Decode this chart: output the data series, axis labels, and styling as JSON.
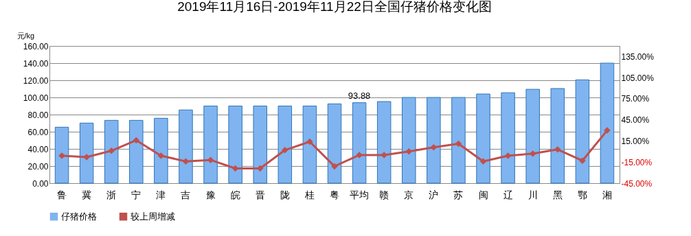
{
  "chart_data": {
    "type": "bar",
    "title": "2019年11月16日-2019年11月22日全国仔猪价格变化图",
    "ylabel": "元/kg",
    "categories": [
      "鲁",
      "冀",
      "浙",
      "宁",
      "津",
      "吉",
      "豫",
      "皖",
      "晋",
      "陇",
      "桂",
      "粤",
      "平均",
      "赣",
      "京",
      "沪",
      "苏",
      "闽",
      "辽",
      "川",
      "黑",
      "鄂",
      "湘"
    ],
    "series": [
      {
        "name": "仔猪价格",
        "color": "#7fb4f0",
        "values": [
          65.3,
          70.1,
          73.3,
          73.3,
          75.7,
          85.4,
          90,
          90,
          90,
          90,
          90,
          92.5,
          93.88,
          95.2,
          100,
          100,
          100,
          104,
          105.5,
          109.5,
          110.4,
          120.5,
          140
        ],
        "value_labels": [
          null,
          null,
          null,
          null,
          null,
          null,
          null,
          null,
          null,
          null,
          null,
          null,
          "93.88",
          null,
          null,
          null,
          null,
          null,
          null,
          null,
          null,
          null,
          null
        ]
      },
      {
        "name": "较上周增减",
        "type": "line",
        "axis": "y2",
        "color": "#c0504d",
        "values": [
          -6,
          -8,
          1,
          16,
          -6,
          -14,
          -12,
          -24,
          -24,
          2,
          14,
          -21,
          -5,
          -5,
          0,
          6,
          11,
          -14,
          -6,
          -3,
          3,
          -13,
          30
        ]
      }
    ],
    "ylim": [
      0,
      160
    ],
    "yticks": [
      {
        "value": 0,
        "label": "0.00"
      },
      {
        "value": 20,
        "label": "20.00"
      },
      {
        "value": 40,
        "label": "40.00"
      },
      {
        "value": 60,
        "label": "60.00"
      },
      {
        "value": 80,
        "label": "80.00"
      },
      {
        "value": 100,
        "label": "100.00"
      },
      {
        "value": 120,
        "label": "120.00"
      },
      {
        "value": 140,
        "label": "140.00"
      },
      {
        "value": 160,
        "label": "160.00"
      }
    ],
    "y2lim": [
      -45,
      150
    ],
    "y2ticks": [
      {
        "value": -45,
        "label": "-45.00%"
      },
      {
        "value": -15,
        "label": "-15.00%"
      },
      {
        "value": 15,
        "label": "15.00%"
      },
      {
        "value": 45,
        "label": "45.00%"
      },
      {
        "value": 75,
        "label": "75.00%"
      },
      {
        "value": 105,
        "label": "105.00%"
      },
      {
        "value": 135,
        "label": "135.00%"
      }
    ],
    "grid": "y",
    "legend": "bottom",
    "marker": "diamond",
    "line_style": "solid"
  }
}
